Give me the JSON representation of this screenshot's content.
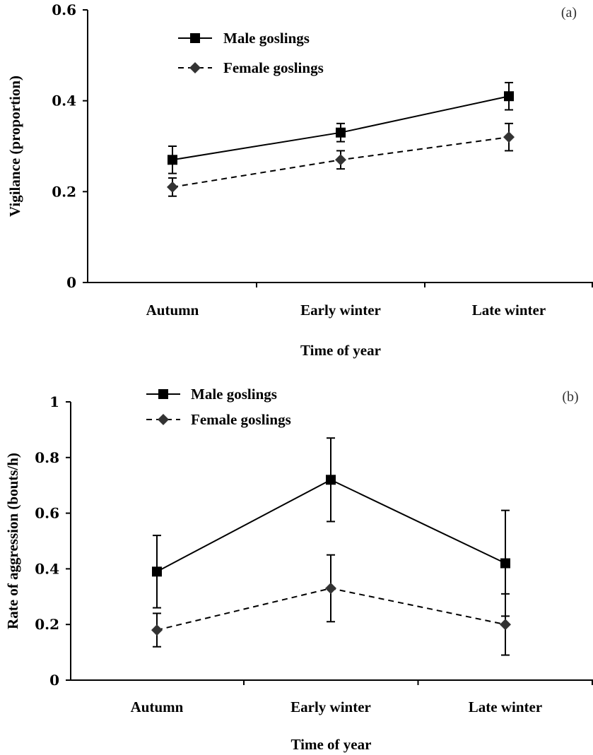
{
  "chart_data": [
    {
      "type": "line",
      "panel_label": "(a)",
      "categories": [
        "Autumn",
        "Early winter",
        "Late winter"
      ],
      "xlabel": "Time of year",
      "ylabel": "Vigilance (proportion)",
      "ylim": [
        0,
        0.6
      ],
      "yticks": [
        "0",
        "0.2",
        "0.4",
        "0.6"
      ],
      "legend_position": "top-left",
      "grid": false,
      "series": [
        {
          "name": "Male goslings",
          "marker": "square",
          "line": "solid",
          "values": [
            0.27,
            0.33,
            0.41
          ],
          "err": [
            0.03,
            0.02,
            0.03
          ]
        },
        {
          "name": "Female goslings",
          "marker": "diamond",
          "line": "dashed",
          "values": [
            0.21,
            0.27,
            0.32
          ],
          "err": [
            0.02,
            0.02,
            0.03
          ]
        }
      ]
    },
    {
      "type": "line",
      "panel_label": "(b)",
      "categories": [
        "Autumn",
        "Early winter",
        "Late winter"
      ],
      "xlabel": "Time of year",
      "ylabel": "Rate of aggression (bouts/h)",
      "ylim": [
        0,
        1
      ],
      "yticks": [
        "0",
        "0.2",
        "0.4",
        "0.6",
        "0.8",
        "1"
      ],
      "legend_position": "top-left",
      "grid": false,
      "series": [
        {
          "name": "Male goslings",
          "marker": "square",
          "line": "solid",
          "values": [
            0.39,
            0.72,
            0.42
          ],
          "err": [
            0.13,
            0.15,
            0.19
          ]
        },
        {
          "name": "Female goslings",
          "marker": "diamond",
          "line": "dashed",
          "values": [
            0.18,
            0.33,
            0.2
          ],
          "err": [
            0.06,
            0.12,
            0.11
          ]
        }
      ]
    }
  ]
}
